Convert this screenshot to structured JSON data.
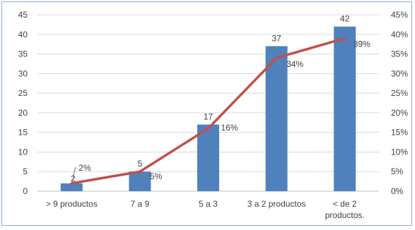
{
  "chart_data": {
    "type": "bar",
    "categories": [
      "> 9 productos",
      "7 a 9",
      "5 a 3",
      "3 a 2 productos",
      "< de 2 productos."
    ],
    "series": [
      {
        "type": "bar",
        "axis": "left",
        "color": "#4f81bd",
        "values": [
          2,
          5,
          17,
          37,
          42
        ]
      },
      {
        "type": "line",
        "axis": "right",
        "color": "#c0504d",
        "values": [
          2,
          5,
          16,
          34,
          39
        ],
        "unit": "%"
      }
    ],
    "bar_data_labels": [
      "2",
      "5",
      "17",
      "37",
      "42"
    ],
    "line_data_labels": [
      "2%",
      "5%",
      "16%",
      "34%",
      "39%"
    ],
    "y_left": {
      "min": 0,
      "max": 45,
      "ticks": [
        0,
        5,
        10,
        15,
        20,
        25,
        30,
        35,
        40,
        45
      ]
    },
    "y_right": {
      "min": 0,
      "max": 45,
      "ticks": [
        "0%",
        "5%",
        "10%",
        "15%",
        "20%",
        "25%",
        "30%",
        "35%",
        "40%",
        "45%"
      ]
    },
    "grid": true,
    "legend": "none",
    "title": "",
    "xlabel": "",
    "ylabel": ""
  }
}
